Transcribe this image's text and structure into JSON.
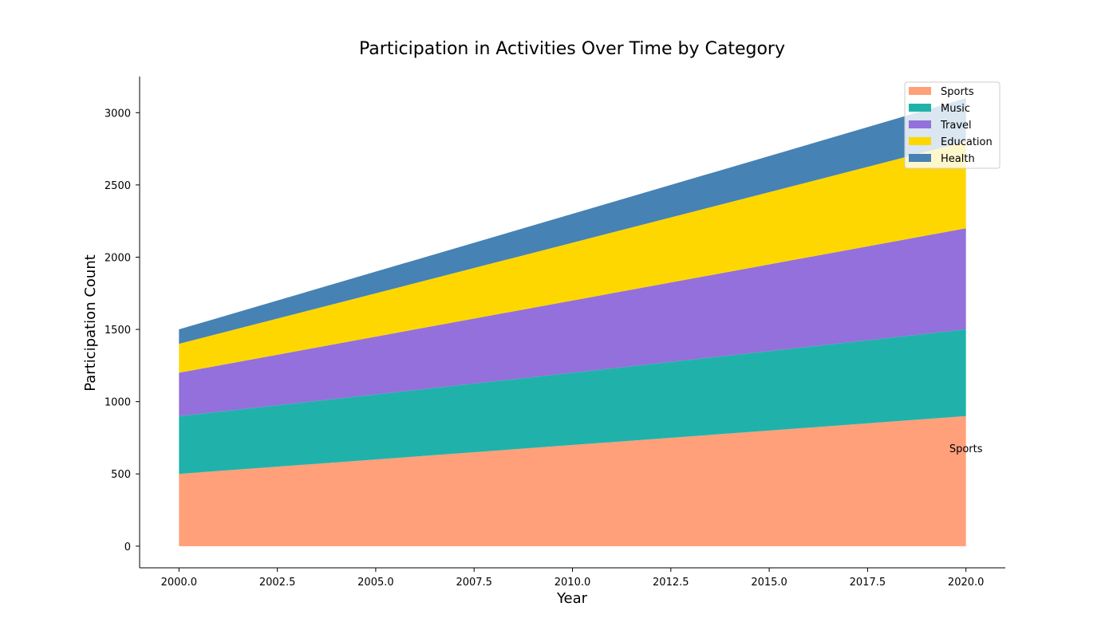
{
  "chart_data": {
    "type": "area",
    "stacked": true,
    "title": "Participation in Activities Over Time by Category",
    "xlabel": "Year",
    "ylabel": "Participation Count",
    "x": [
      2000,
      2020
    ],
    "xlim": [
      1999,
      2021
    ],
    "ylim": [
      -150,
      3250
    ],
    "xticks": [
      "2000.0",
      "2002.5",
      "2005.0",
      "2007.5",
      "2010.0",
      "2012.5",
      "2015.0",
      "2017.5",
      "2020.0"
    ],
    "yticks": [
      "0",
      "500",
      "1000",
      "1500",
      "2000",
      "2500",
      "3000"
    ],
    "series": [
      {
        "name": "Sports",
        "values": [
          500,
          900
        ],
        "color": "#FFA07A"
      },
      {
        "name": "Music",
        "values": [
          400,
          600
        ],
        "color": "#20B2AA"
      },
      {
        "name": "Travel",
        "values": [
          300,
          700
        ],
        "color": "#9370DB"
      },
      {
        "name": "Education",
        "values": [
          200,
          600
        ],
        "color": "#FFD700"
      },
      {
        "name": "Health",
        "values": [
          100,
          300
        ],
        "color": "#4682B4"
      }
    ],
    "legend": {
      "position": "top-right"
    },
    "grid": false,
    "annotations": [
      {
        "text": "Sports",
        "x": 2020,
        "y": 650
      }
    ]
  }
}
